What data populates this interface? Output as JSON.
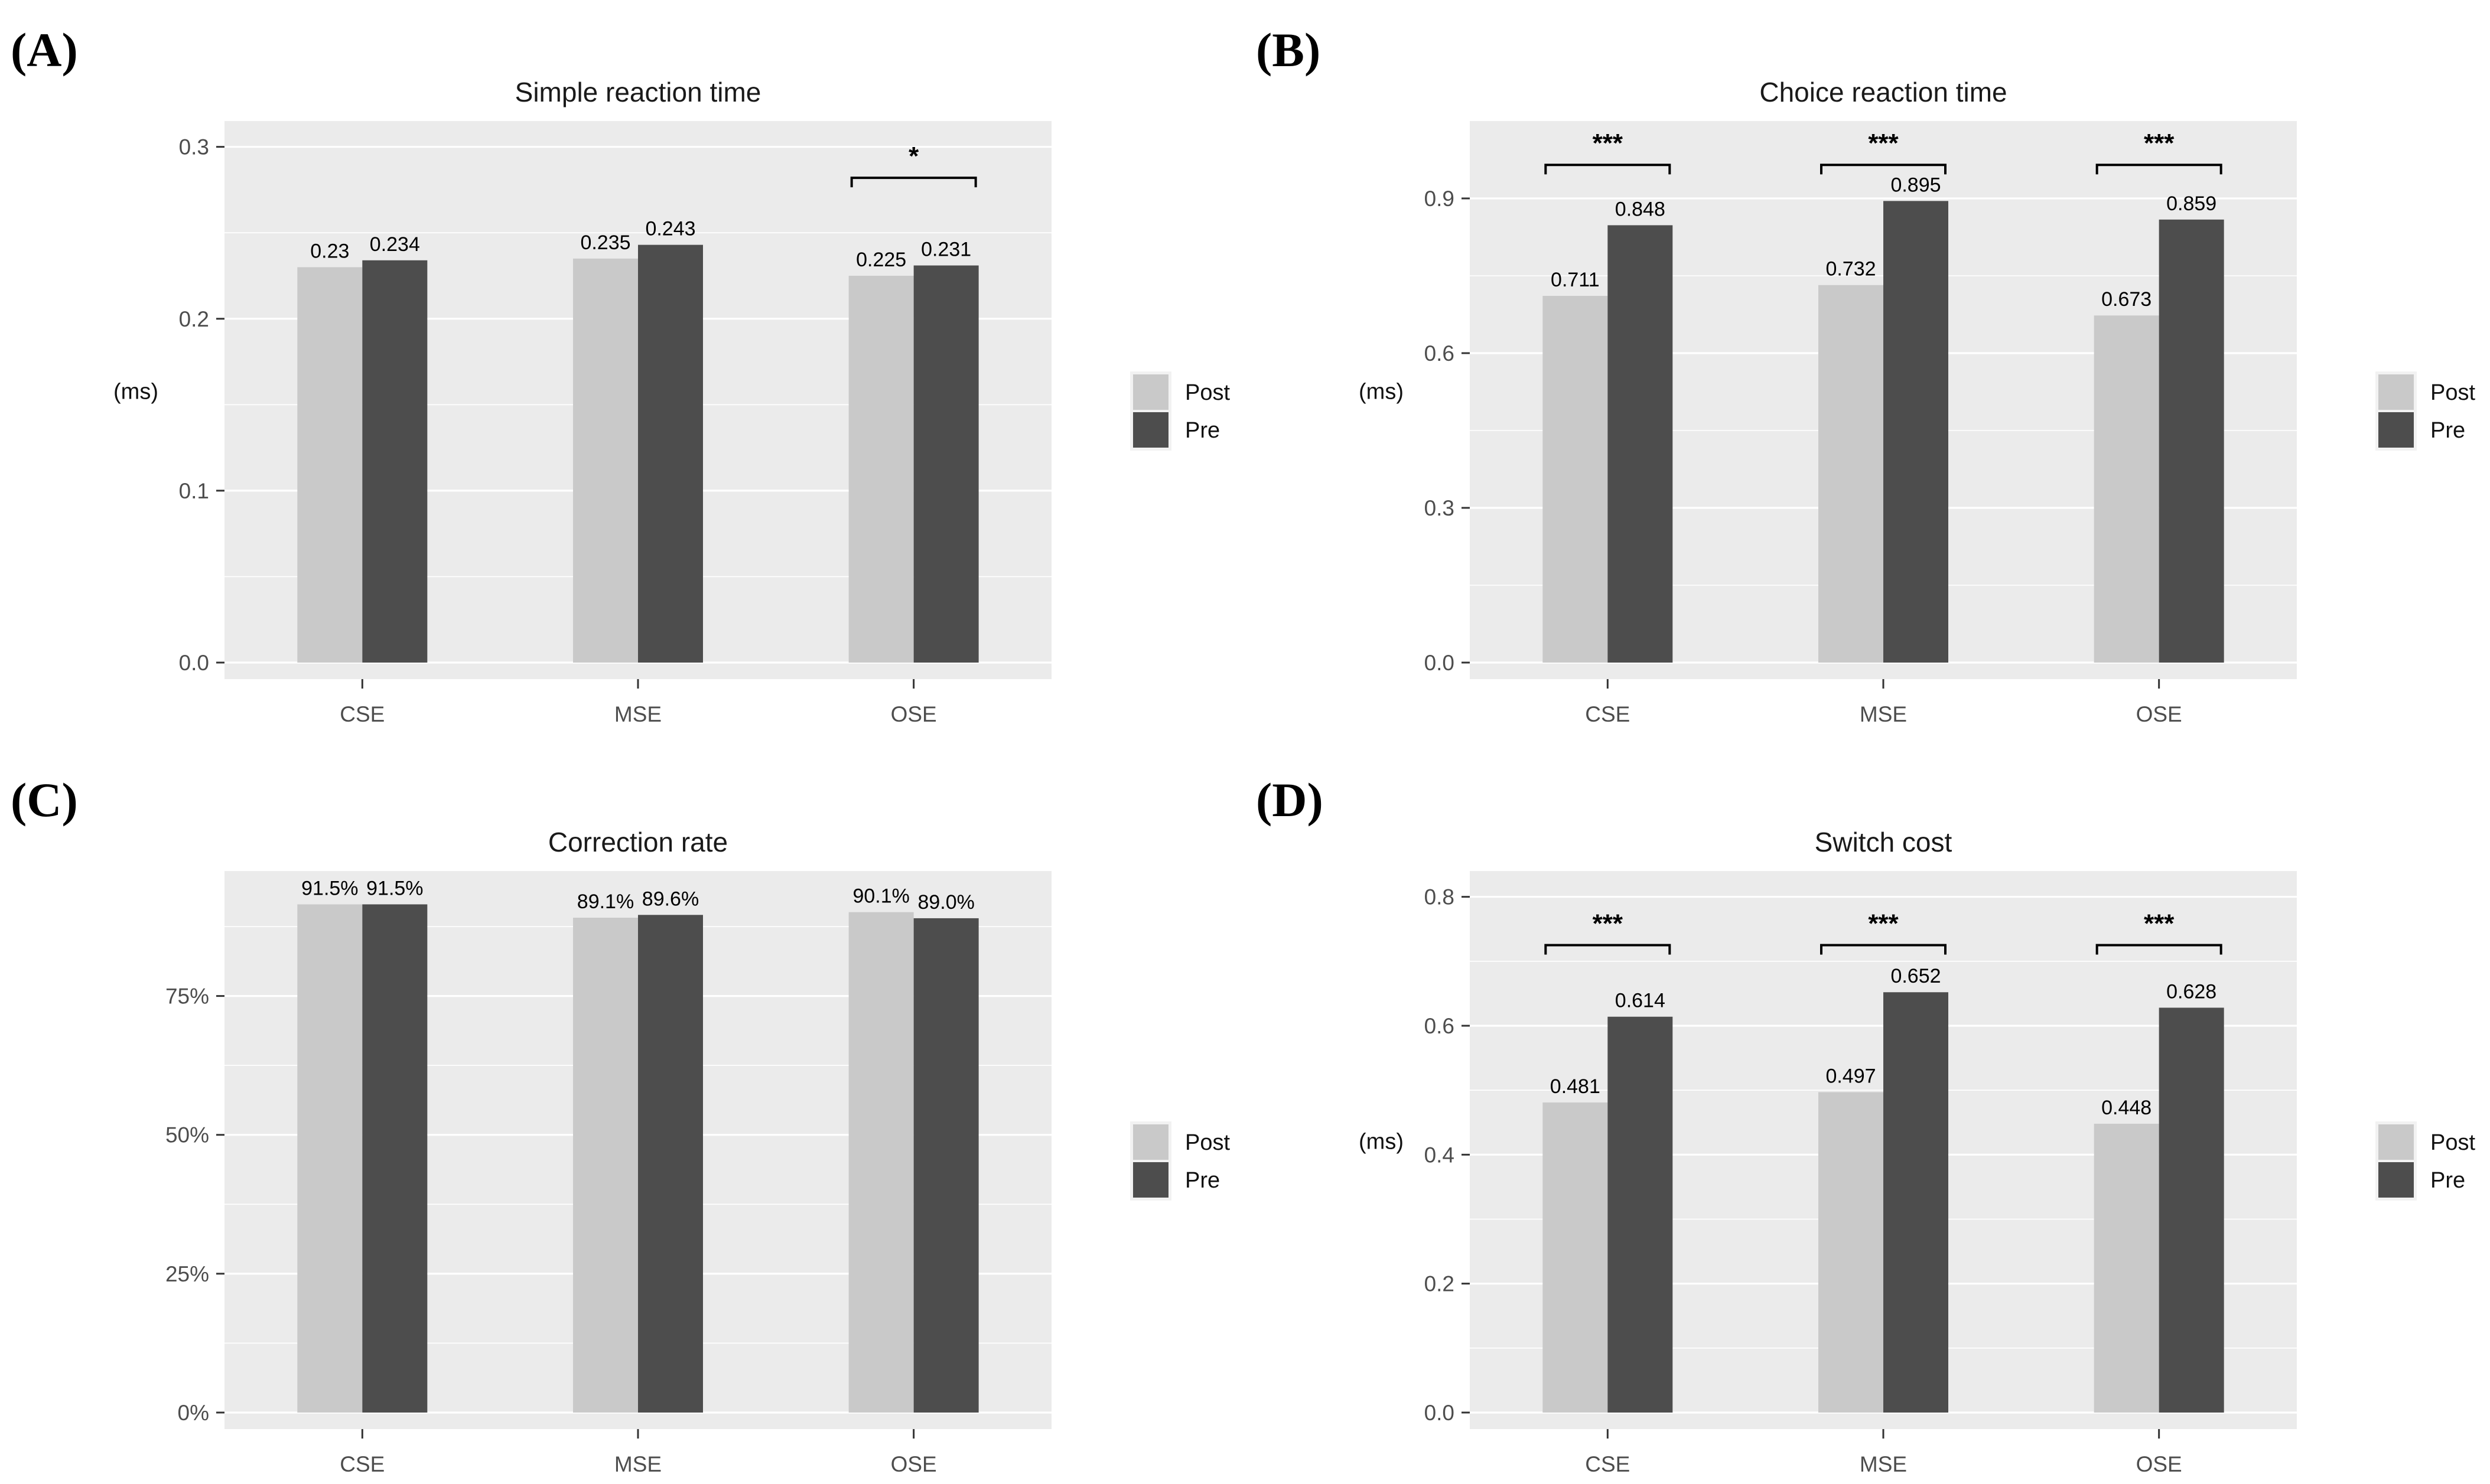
{
  "figure": {
    "background": "#ffffff",
    "colors": {
      "panel_bg": "#EBEBEB",
      "grid_major": "#FFFFFF",
      "grid_minor": "#F7F7F7",
      "post_bar": "#C9C9C9",
      "pre_bar": "#4D4D4D",
      "tick_text": "#4D4D4D",
      "title_text": "#1A1A1A",
      "value_text": "#000000",
      "axis_tick": "#333333",
      "legend_key_bg": "#F2F2F2"
    },
    "legend": {
      "items": [
        {
          "label": "Post",
          "color_key": "post_bar"
        },
        {
          "label": "Pre",
          "color_key": "pre_bar"
        }
      ]
    }
  },
  "chart_data": [
    {
      "id": "(A)",
      "type": "bar",
      "title": "Simple reaction time",
      "ylabel": "(ms)",
      "xlabel": "",
      "categories": [
        "CSE",
        "MSE",
        "OSE"
      ],
      "series": [
        {
          "name": "Post",
          "values": [
            0.23,
            0.235,
            0.225
          ],
          "labels": [
            "0.23",
            "0.235",
            "0.225"
          ]
        },
        {
          "name": "Pre",
          "values": [
            0.234,
            0.243,
            0.231
          ],
          "labels": [
            "0.234",
            "0.243",
            "0.231"
          ]
        }
      ],
      "ylim": [
        0,
        0.315
      ],
      "yticks": [
        {
          "value": 0.0,
          "label": "0.0"
        },
        {
          "value": 0.1,
          "label": "0.1"
        },
        {
          "value": 0.2,
          "label": "0.2"
        },
        {
          "value": 0.3,
          "label": "0.3"
        }
      ],
      "minor_step": 0.05,
      "grid": true,
      "legend_position": "right",
      "significance": [
        {
          "category": "OSE",
          "label": "*",
          "y": 0.282
        }
      ]
    },
    {
      "id": "(B)",
      "type": "bar",
      "title": "Choice reaction time",
      "ylabel": "(ms)",
      "xlabel": "",
      "categories": [
        "CSE",
        "MSE",
        "OSE"
      ],
      "series": [
        {
          "name": "Post",
          "values": [
            0.711,
            0.732,
            0.673
          ],
          "labels": [
            "0.711",
            "0.732",
            "0.673"
          ]
        },
        {
          "name": "Pre",
          "values": [
            0.848,
            0.895,
            0.859
          ],
          "labels": [
            "0.848",
            "0.895",
            "0.859"
          ]
        }
      ],
      "ylim": [
        0,
        1.05
      ],
      "yticks": [
        {
          "value": 0.0,
          "label": "0.0"
        },
        {
          "value": 0.3,
          "label": "0.3"
        },
        {
          "value": 0.6,
          "label": "0.6"
        },
        {
          "value": 0.9,
          "label": "0.9"
        }
      ],
      "minor_step": 0.15,
      "grid": true,
      "legend_position": "right",
      "significance": [
        {
          "category": "CSE",
          "label": "***",
          "y": 0.965
        },
        {
          "category": "MSE",
          "label": "***",
          "y": 0.965
        },
        {
          "category": "OSE",
          "label": "***",
          "y": 0.965
        }
      ]
    },
    {
      "id": "(C)",
      "type": "bar",
      "title": "Correction rate",
      "ylabel": "",
      "xlabel": "",
      "categories": [
        "CSE",
        "MSE",
        "OSE"
      ],
      "series": [
        {
          "name": "Post",
          "values": [
            91.5,
            89.1,
            90.1
          ],
          "labels": [
            "91.5%",
            "89.1%",
            "90.1%"
          ]
        },
        {
          "name": "Pre",
          "values": [
            91.5,
            89.6,
            89.0
          ],
          "labels": [
            "91.5%",
            "89.6%",
            "89.0%"
          ]
        }
      ],
      "ylim": [
        0,
        97.5
      ],
      "yticks": [
        {
          "value": 0,
          "label": "0%"
        },
        {
          "value": 25,
          "label": "25%"
        },
        {
          "value": 50,
          "label": "50%"
        },
        {
          "value": 75,
          "label": "75%"
        }
      ],
      "minor_step": 12.5,
      "grid": true,
      "legend_position": "right",
      "significance": []
    },
    {
      "id": "(D)",
      "type": "bar",
      "title": "Switch cost",
      "ylabel": "(ms)",
      "xlabel": "",
      "categories": [
        "CSE",
        "MSE",
        "OSE"
      ],
      "series": [
        {
          "name": "Post",
          "values": [
            0.481,
            0.497,
            0.448
          ],
          "labels": [
            "0.481",
            "0.497",
            "0.448"
          ]
        },
        {
          "name": "Pre",
          "values": [
            0.614,
            0.652,
            0.628
          ],
          "labels": [
            "0.614",
            "0.652",
            "0.628"
          ]
        }
      ],
      "ylim": [
        0,
        0.84
      ],
      "yticks": [
        {
          "value": 0.0,
          "label": "0.0"
        },
        {
          "value": 0.2,
          "label": "0.2"
        },
        {
          "value": 0.4,
          "label": "0.4"
        },
        {
          "value": 0.6,
          "label": "0.6"
        },
        {
          "value": 0.8,
          "label": "0.8"
        }
      ],
      "minor_step": 0.1,
      "grid": true,
      "legend_position": "right",
      "significance": [
        {
          "category": "CSE",
          "label": "***",
          "y": 0.725
        },
        {
          "category": "MSE",
          "label": "***",
          "y": 0.725
        },
        {
          "category": "OSE",
          "label": "***",
          "y": 0.725
        }
      ]
    }
  ]
}
